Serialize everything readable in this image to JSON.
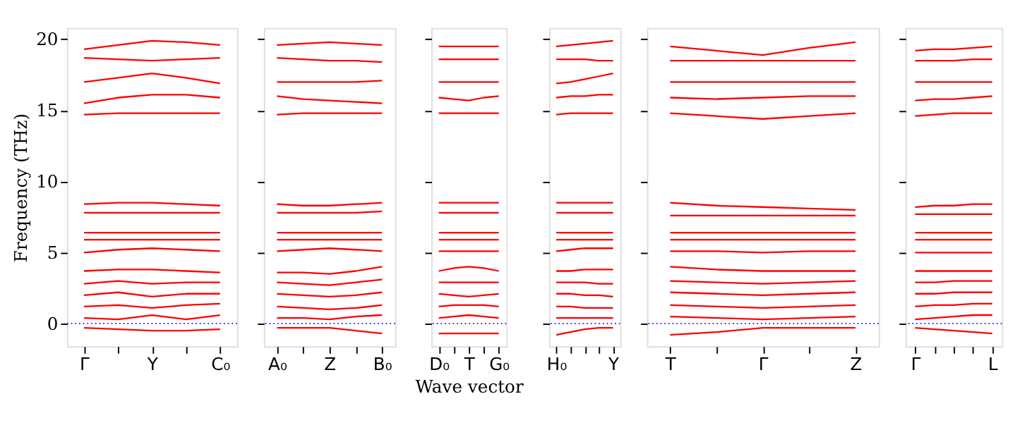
{
  "chart_data": [
    {
      "type": "line",
      "ylabel": "Frequency (THz)",
      "ylim": [
        -1.6,
        20.8
      ],
      "yticks": [
        0,
        5,
        10,
        15,
        20
      ],
      "categories": [
        "Γ",
        null,
        "Y",
        null,
        "C₀"
      ],
      "grid": false,
      "legend": false,
      "ref_lines": [
        {
          "axis": "y",
          "value": 0,
          "label": null,
          "color": "#0000ff",
          "line_style": "dotted"
        }
      ],
      "series": [
        {
          "color": "#ff0000",
          "values": [
            19.3,
            19.6,
            19.9,
            19.8,
            19.6
          ]
        },
        {
          "color": "#ff0000",
          "values": [
            18.7,
            18.6,
            18.5,
            18.6,
            18.7
          ]
        },
        {
          "color": "#ff0000",
          "values": [
            17.0,
            17.3,
            17.6,
            17.3,
            16.9
          ]
        },
        {
          "color": "#ff0000",
          "values": [
            15.5,
            15.9,
            16.1,
            16.1,
            15.9
          ]
        },
        {
          "color": "#ff0000",
          "values": [
            14.7,
            14.8,
            14.8,
            14.8,
            14.8
          ]
        },
        {
          "color": "#ff0000",
          "values": [
            8.4,
            8.5,
            8.5,
            8.4,
            8.3
          ]
        },
        {
          "color": "#ff0000",
          "values": [
            7.8,
            7.8,
            7.8,
            7.8,
            7.8
          ]
        },
        {
          "color": "#ff0000",
          "values": [
            6.4,
            6.4,
            6.4,
            6.4,
            6.4
          ]
        },
        {
          "color": "#ff0000",
          "values": [
            5.9,
            5.9,
            5.9,
            5.9,
            5.9
          ]
        },
        {
          "color": "#ff0000",
          "values": [
            5.0,
            5.2,
            5.3,
            5.2,
            5.1
          ]
        },
        {
          "color": "#ff0000",
          "values": [
            3.7,
            3.8,
            3.8,
            3.7,
            3.6
          ]
        },
        {
          "color": "#ff0000",
          "values": [
            2.8,
            3.0,
            2.8,
            2.9,
            2.9
          ]
        },
        {
          "color": "#ff0000",
          "values": [
            2.0,
            2.2,
            1.9,
            2.1,
            2.1
          ]
        },
        {
          "color": "#ff0000",
          "values": [
            1.2,
            1.3,
            1.1,
            1.3,
            1.4
          ]
        },
        {
          "color": "#ff0000",
          "values": [
            0.4,
            0.3,
            0.6,
            0.3,
            0.6
          ]
        },
        {
          "color": "#ff0000",
          "values": [
            -0.3,
            -0.4,
            -0.5,
            -0.5,
            -0.4
          ]
        }
      ]
    },
    {
      "type": "line",
      "ylim": [
        -1.6,
        20.8
      ],
      "yticks": [
        0,
        5,
        10,
        15,
        20
      ],
      "tick_labels": "x",
      "categories": [
        "A₀",
        null,
        "Z",
        null,
        "B₀"
      ],
      "grid": false,
      "legend": false,
      "ref_lines": [
        {
          "axis": "y",
          "value": 0,
          "label": null,
          "color": "#0000ff",
          "line_style": "dotted"
        }
      ],
      "series": [
        {
          "color": "#ff0000",
          "values": [
            19.6,
            19.7,
            19.8,
            19.7,
            19.6
          ]
        },
        {
          "color": "#ff0000",
          "values": [
            18.7,
            18.6,
            18.5,
            18.5,
            18.4
          ]
        },
        {
          "color": "#ff0000",
          "values": [
            17.0,
            17.0,
            17.0,
            17.0,
            17.1
          ]
        },
        {
          "color": "#ff0000",
          "values": [
            16.0,
            15.8,
            15.7,
            15.6,
            15.5
          ]
        },
        {
          "color": "#ff0000",
          "values": [
            14.7,
            14.8,
            14.8,
            14.8,
            14.8
          ]
        },
        {
          "color": "#ff0000",
          "values": [
            8.4,
            8.3,
            8.3,
            8.4,
            8.5
          ]
        },
        {
          "color": "#ff0000",
          "values": [
            7.8,
            7.8,
            7.8,
            7.8,
            7.9
          ]
        },
        {
          "color": "#ff0000",
          "values": [
            6.4,
            6.4,
            6.4,
            6.4,
            6.4
          ]
        },
        {
          "color": "#ff0000",
          "values": [
            5.9,
            5.9,
            5.9,
            5.9,
            5.9
          ]
        },
        {
          "color": "#ff0000",
          "values": [
            5.1,
            5.2,
            5.3,
            5.2,
            5.1
          ]
        },
        {
          "color": "#ff0000",
          "values": [
            3.6,
            3.6,
            3.5,
            3.7,
            4.0
          ]
        },
        {
          "color": "#ff0000",
          "values": [
            2.9,
            2.8,
            2.7,
            2.9,
            3.1
          ]
        },
        {
          "color": "#ff0000",
          "values": [
            2.1,
            2.0,
            1.9,
            2.0,
            2.2
          ]
        },
        {
          "color": "#ff0000",
          "values": [
            1.2,
            1.1,
            1.0,
            1.1,
            1.3
          ]
        },
        {
          "color": "#ff0000",
          "values": [
            0.4,
            0.4,
            0.3,
            0.5,
            0.6
          ]
        },
        {
          "color": "#ff0000",
          "values": [
            -0.3,
            -0.3,
            -0.3,
            -0.5,
            -0.7
          ]
        }
      ]
    },
    {
      "type": "line",
      "xlabel": "Wave vector",
      "ylim": [
        -1.6,
        20.8
      ],
      "yticks": [
        0,
        5,
        10,
        15,
        20
      ],
      "tick_labels": "x",
      "categories": [
        "D₀",
        null,
        "T",
        null,
        "G₀"
      ],
      "grid": false,
      "legend": false,
      "ref_lines": [
        {
          "axis": "y",
          "value": 0,
          "label": null,
          "color": "#0000ff",
          "line_style": "dotted"
        }
      ],
      "series": [
        {
          "color": "#ff0000",
          "values": [
            19.5,
            19.5,
            19.5,
            19.5,
            19.5
          ]
        },
        {
          "color": "#ff0000",
          "values": [
            18.6,
            18.6,
            18.6,
            18.6,
            18.6
          ]
        },
        {
          "color": "#ff0000",
          "values": [
            17.0,
            17.0,
            17.0,
            17.0,
            17.0
          ]
        },
        {
          "color": "#ff0000",
          "values": [
            15.9,
            15.8,
            15.7,
            15.9,
            16.0
          ]
        },
        {
          "color": "#ff0000",
          "values": [
            14.8,
            14.8,
            14.8,
            14.8,
            14.8
          ]
        },
        {
          "color": "#ff0000",
          "values": [
            8.5,
            8.5,
            8.5,
            8.5,
            8.5
          ]
        },
        {
          "color": "#ff0000",
          "values": [
            7.8,
            7.8,
            7.8,
            7.8,
            7.8
          ]
        },
        {
          "color": "#ff0000",
          "values": [
            6.4,
            6.4,
            6.4,
            6.4,
            6.4
          ]
        },
        {
          "color": "#ff0000",
          "values": [
            5.9,
            5.9,
            5.9,
            5.9,
            5.9
          ]
        },
        {
          "color": "#ff0000",
          "values": [
            5.1,
            5.1,
            5.1,
            5.1,
            5.1
          ]
        },
        {
          "color": "#ff0000",
          "values": [
            3.7,
            3.9,
            4.0,
            3.9,
            3.7
          ]
        },
        {
          "color": "#ff0000",
          "values": [
            2.9,
            2.9,
            2.9,
            2.9,
            2.9
          ]
        },
        {
          "color": "#ff0000",
          "values": [
            2.1,
            2.0,
            1.9,
            2.0,
            2.1
          ]
        },
        {
          "color": "#ff0000",
          "values": [
            1.2,
            1.3,
            1.3,
            1.3,
            1.2
          ]
        },
        {
          "color": "#ff0000",
          "values": [
            0.4,
            0.5,
            0.6,
            0.5,
            0.4
          ]
        },
        {
          "color": "#ff0000",
          "values": [
            -0.7,
            -0.7,
            -0.7,
            -0.7,
            -0.7
          ]
        }
      ]
    },
    {
      "type": "line",
      "ylim": [
        -1.6,
        20.8
      ],
      "yticks": [
        0,
        5,
        10,
        15,
        20
      ],
      "tick_labels": "x",
      "categories": [
        "H₀",
        null,
        null,
        null,
        "Y"
      ],
      "grid": false,
      "legend": false,
      "ref_lines": [
        {
          "axis": "y",
          "value": 0,
          "label": null,
          "color": "#0000ff",
          "line_style": "dotted"
        }
      ],
      "series": [
        {
          "color": "#ff0000",
          "values": [
            19.5,
            19.6,
            19.7,
            19.8,
            19.9
          ]
        },
        {
          "color": "#ff0000",
          "values": [
            18.6,
            18.6,
            18.6,
            18.5,
            18.5
          ]
        },
        {
          "color": "#ff0000",
          "values": [
            16.9,
            17.0,
            17.2,
            17.4,
            17.6
          ]
        },
        {
          "color": "#ff0000",
          "values": [
            15.9,
            16.0,
            16.0,
            16.1,
            16.1
          ]
        },
        {
          "color": "#ff0000",
          "values": [
            14.7,
            14.8,
            14.8,
            14.8,
            14.8
          ]
        },
        {
          "color": "#ff0000",
          "values": [
            8.5,
            8.5,
            8.5,
            8.5,
            8.5
          ]
        },
        {
          "color": "#ff0000",
          "values": [
            7.8,
            7.8,
            7.8,
            7.8,
            7.8
          ]
        },
        {
          "color": "#ff0000",
          "values": [
            6.4,
            6.4,
            6.4,
            6.4,
            6.4
          ]
        },
        {
          "color": "#ff0000",
          "values": [
            5.9,
            5.9,
            5.9,
            5.9,
            5.9
          ]
        },
        {
          "color": "#ff0000",
          "values": [
            5.1,
            5.2,
            5.3,
            5.3,
            5.3
          ]
        },
        {
          "color": "#ff0000",
          "values": [
            3.7,
            3.7,
            3.8,
            3.8,
            3.8
          ]
        },
        {
          "color": "#ff0000",
          "values": [
            2.9,
            2.9,
            2.9,
            2.8,
            2.8
          ]
        },
        {
          "color": "#ff0000",
          "values": [
            2.1,
            2.1,
            2.0,
            2.0,
            1.9
          ]
        },
        {
          "color": "#ff0000",
          "values": [
            1.2,
            1.2,
            1.1,
            1.1,
            1.1
          ]
        },
        {
          "color": "#ff0000",
          "values": [
            0.4,
            0.4,
            0.4,
            0.4,
            0.4
          ]
        },
        {
          "color": "#ff0000",
          "values": [
            -0.8,
            -0.6,
            -0.4,
            -0.3,
            -0.3
          ]
        }
      ]
    },
    {
      "type": "line",
      "ylim": [
        -1.6,
        20.8
      ],
      "yticks": [
        0,
        5,
        10,
        15,
        20
      ],
      "tick_labels": "x",
      "categories": [
        "T",
        null,
        "Γ",
        null,
        "Z"
      ],
      "grid": false,
      "legend": false,
      "ref_lines": [
        {
          "axis": "y",
          "value": 0,
          "label": null,
          "color": "#0000ff",
          "line_style": "dotted"
        }
      ],
      "series": [
        {
          "color": "#ff0000",
          "values": [
            19.5,
            19.2,
            18.9,
            19.4,
            19.8
          ]
        },
        {
          "color": "#ff0000",
          "values": [
            18.5,
            18.5,
            18.5,
            18.5,
            18.5
          ]
        },
        {
          "color": "#ff0000",
          "values": [
            17.0,
            17.0,
            17.0,
            17.0,
            17.0
          ]
        },
        {
          "color": "#ff0000",
          "values": [
            15.9,
            15.8,
            15.9,
            16.0,
            16.0
          ]
        },
        {
          "color": "#ff0000",
          "values": [
            14.8,
            14.6,
            14.4,
            14.6,
            14.8
          ]
        },
        {
          "color": "#ff0000",
          "values": [
            8.5,
            8.3,
            8.2,
            8.1,
            8.0
          ]
        },
        {
          "color": "#ff0000",
          "values": [
            7.6,
            7.6,
            7.6,
            7.6,
            7.6
          ]
        },
        {
          "color": "#ff0000",
          "values": [
            6.4,
            6.4,
            6.4,
            6.4,
            6.4
          ]
        },
        {
          "color": "#ff0000",
          "values": [
            5.9,
            5.9,
            5.9,
            5.9,
            5.9
          ]
        },
        {
          "color": "#ff0000",
          "values": [
            5.1,
            5.1,
            5.0,
            5.1,
            5.1
          ]
        },
        {
          "color": "#ff0000",
          "values": [
            4.0,
            3.8,
            3.7,
            3.7,
            3.7
          ]
        },
        {
          "color": "#ff0000",
          "values": [
            3.0,
            2.9,
            2.8,
            2.9,
            3.0
          ]
        },
        {
          "color": "#ff0000",
          "values": [
            2.2,
            2.1,
            2.0,
            2.1,
            2.2
          ]
        },
        {
          "color": "#ff0000",
          "values": [
            1.3,
            1.2,
            1.1,
            1.2,
            1.3
          ]
        },
        {
          "color": "#ff0000",
          "values": [
            0.5,
            0.4,
            0.3,
            0.4,
            0.5
          ]
        },
        {
          "color": "#ff0000",
          "values": [
            -0.8,
            -0.6,
            -0.3,
            -0.3,
            -0.3
          ]
        }
      ]
    },
    {
      "type": "line",
      "ylim": [
        -1.6,
        20.8
      ],
      "yticks": [
        0,
        5,
        10,
        15,
        20
      ],
      "tick_labels": "x",
      "categories": [
        "Γ",
        null,
        null,
        null,
        "L"
      ],
      "grid": false,
      "legend": false,
      "ref_lines": [
        {
          "axis": "y",
          "value": 0,
          "label": null,
          "color": "#0000ff",
          "line_style": "dotted"
        }
      ],
      "series": [
        {
          "color": "#ff0000",
          "values": [
            19.2,
            19.3,
            19.3,
            19.4,
            19.5
          ]
        },
        {
          "color": "#ff0000",
          "values": [
            18.5,
            18.5,
            18.5,
            18.6,
            18.6
          ]
        },
        {
          "color": "#ff0000",
          "values": [
            17.0,
            17.0,
            17.0,
            17.0,
            17.0
          ]
        },
        {
          "color": "#ff0000",
          "values": [
            15.7,
            15.8,
            15.8,
            15.9,
            16.0
          ]
        },
        {
          "color": "#ff0000",
          "values": [
            14.6,
            14.7,
            14.8,
            14.8,
            14.8
          ]
        },
        {
          "color": "#ff0000",
          "values": [
            8.2,
            8.3,
            8.3,
            8.4,
            8.4
          ]
        },
        {
          "color": "#ff0000",
          "values": [
            7.7,
            7.7,
            7.7,
            7.7,
            7.7
          ]
        },
        {
          "color": "#ff0000",
          "values": [
            6.4,
            6.4,
            6.4,
            6.4,
            6.4
          ]
        },
        {
          "color": "#ff0000",
          "values": [
            5.9,
            5.9,
            5.9,
            5.9,
            5.9
          ]
        },
        {
          "color": "#ff0000",
          "values": [
            5.0,
            5.0,
            5.0,
            5.0,
            5.0
          ]
        },
        {
          "color": "#ff0000",
          "values": [
            3.7,
            3.7,
            3.7,
            3.7,
            3.7
          ]
        },
        {
          "color": "#ff0000",
          "values": [
            2.9,
            2.9,
            3.0,
            3.0,
            3.0
          ]
        },
        {
          "color": "#ff0000",
          "values": [
            2.1,
            2.1,
            2.2,
            2.2,
            2.2
          ]
        },
        {
          "color": "#ff0000",
          "values": [
            1.2,
            1.3,
            1.3,
            1.4,
            1.4
          ]
        },
        {
          "color": "#ff0000",
          "values": [
            0.3,
            0.4,
            0.5,
            0.6,
            0.6
          ]
        },
        {
          "color": "#ff0000",
          "values": [
            -0.3,
            -0.4,
            -0.5,
            -0.6,
            -0.7
          ]
        }
      ]
    }
  ]
}
